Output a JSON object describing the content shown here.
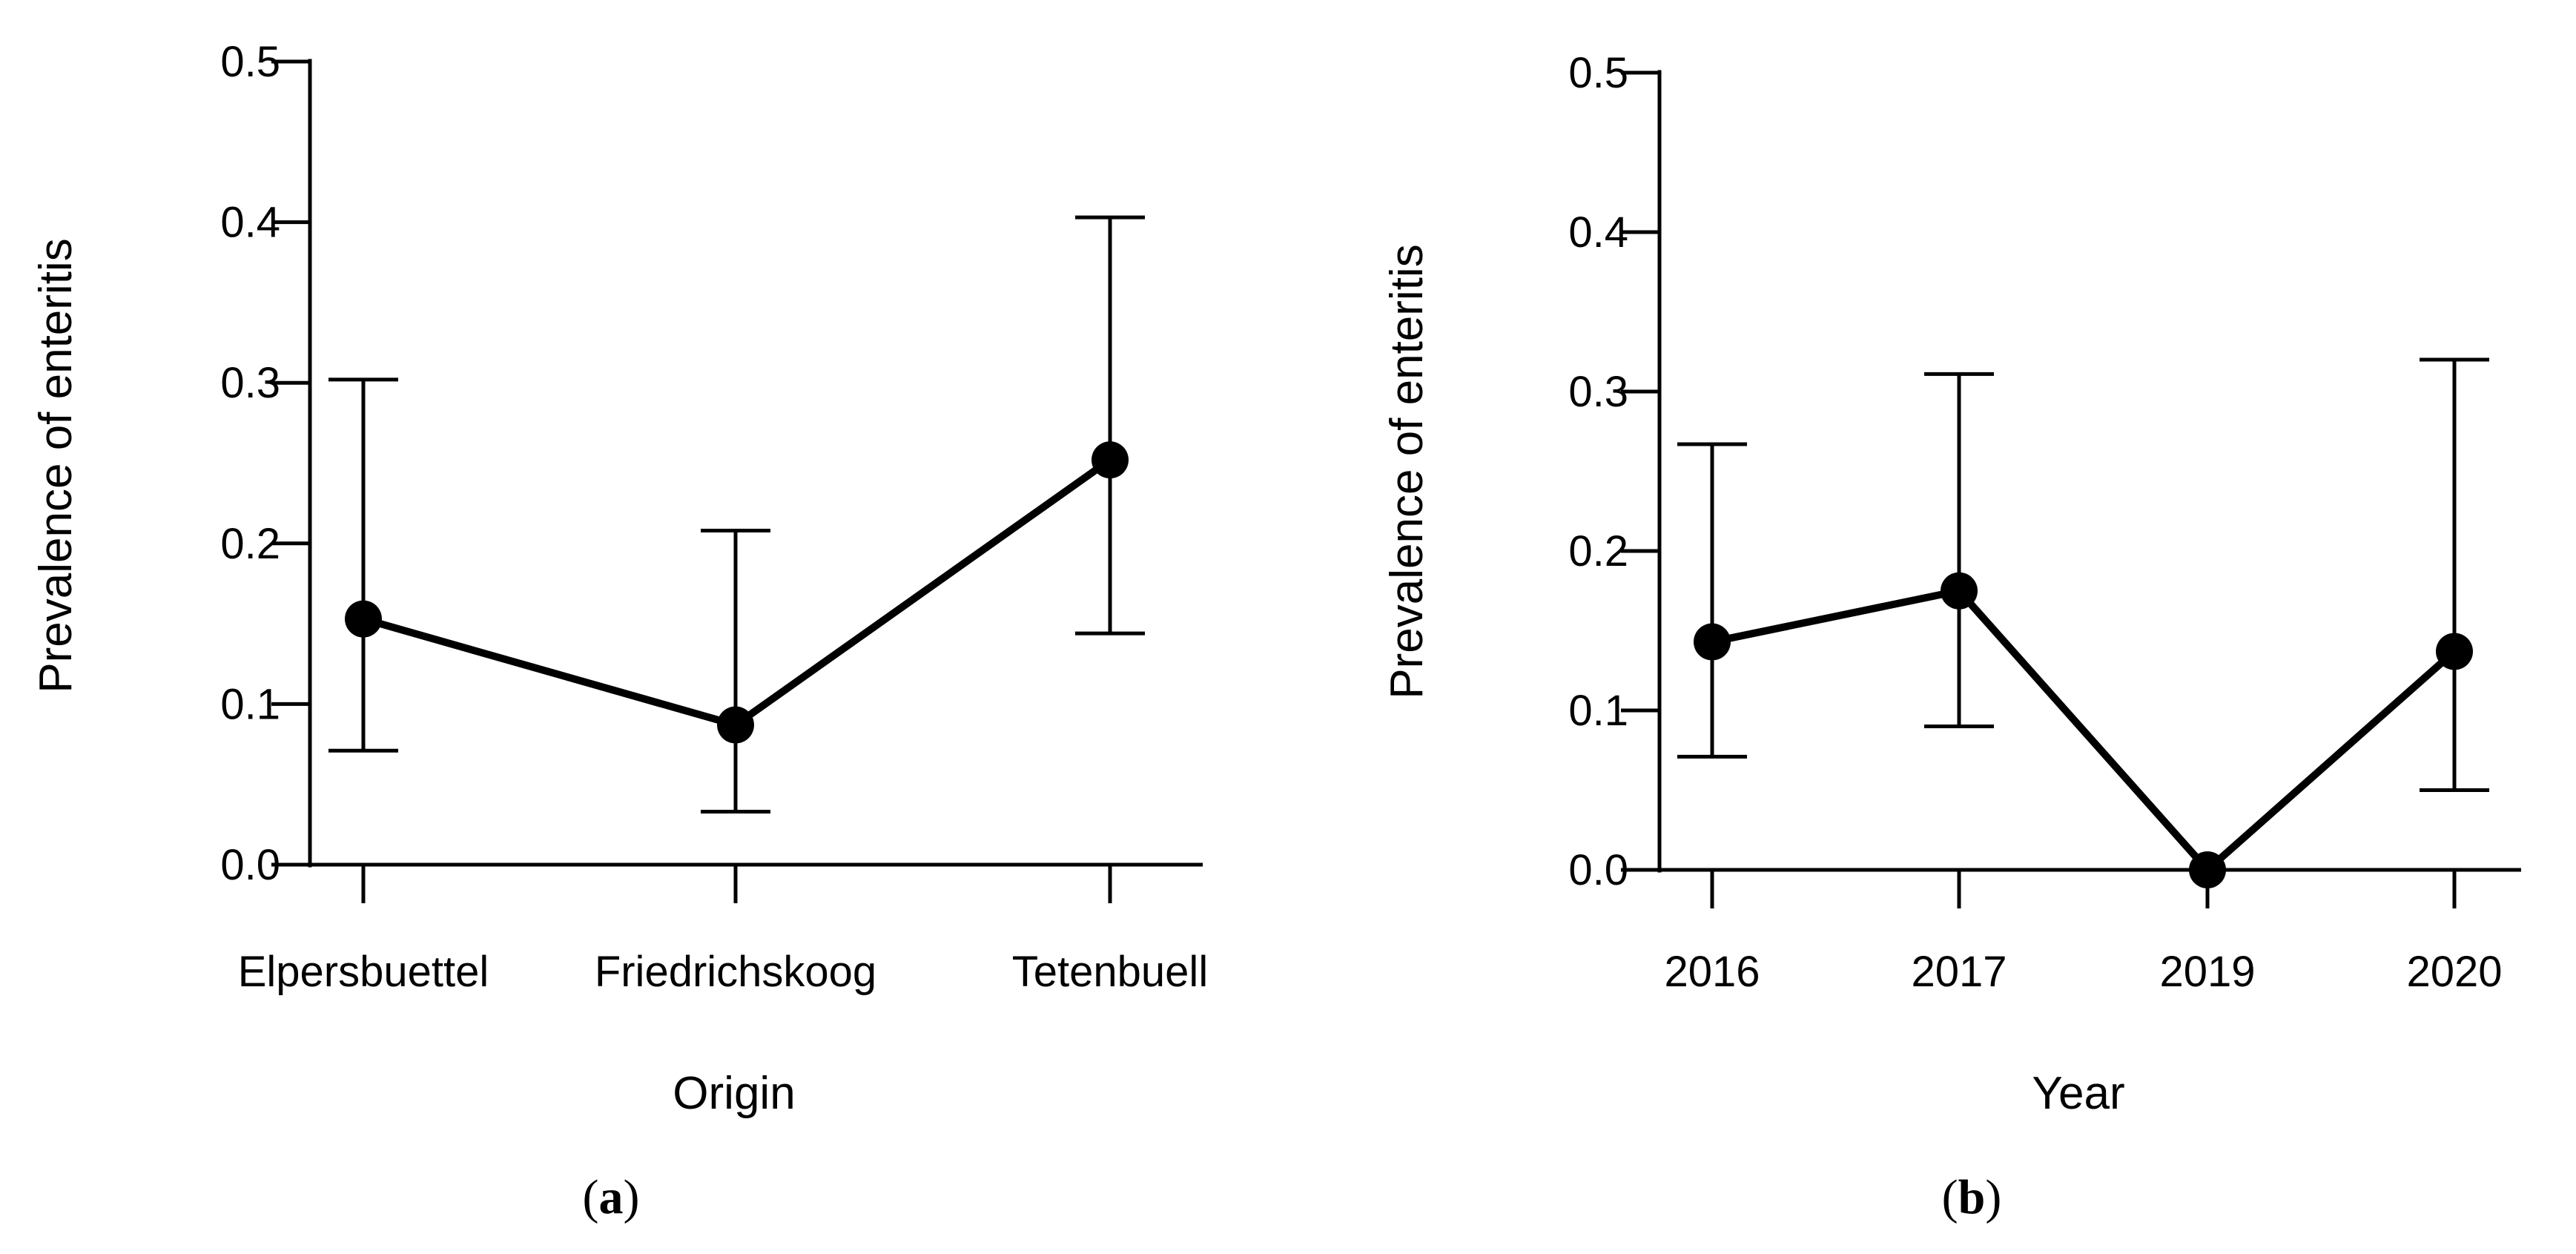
{
  "chart_data": [
    {
      "type": "line",
      "panel_label": "a",
      "xlabel": "Origin",
      "ylabel": "Prevalence of enteritis",
      "ylim": [
        0,
        0.5
      ],
      "yticks": [
        "0.0",
        "0.1",
        "0.2",
        "0.3",
        "0.4",
        "0.5"
      ],
      "ytick_values": [
        0,
        0.1,
        0.2,
        0.3,
        0.4,
        0.5
      ],
      "categories": [
        "Elpersbuettel",
        "Friedrichskoog",
        "Tetenbuell"
      ],
      "values": [
        0.153,
        0.087,
        0.252
      ],
      "lower": [
        0.071,
        0.033,
        0.144
      ],
      "upper": [
        0.302,
        0.208,
        0.403
      ],
      "color": "#000000"
    },
    {
      "type": "line",
      "panel_label": "b",
      "xlabel": "Year",
      "ylabel": "Prevalence of enteritis",
      "ylim": [
        0,
        0.5
      ],
      "yticks": [
        "0.0",
        "0.1",
        "0.2",
        "0.3",
        "0.4",
        "0.5"
      ],
      "ytick_values": [
        0,
        0.1,
        0.2,
        0.3,
        0.4,
        0.5
      ],
      "categories": [
        "2016",
        "2017",
        "2019",
        "2020"
      ],
      "values": [
        0.143,
        0.175,
        0.0,
        0.137
      ],
      "lower": [
        0.071,
        0.09,
        null,
        0.05
      ],
      "upper": [
        0.267,
        0.311,
        null,
        0.32
      ],
      "color": "#000000"
    }
  ]
}
